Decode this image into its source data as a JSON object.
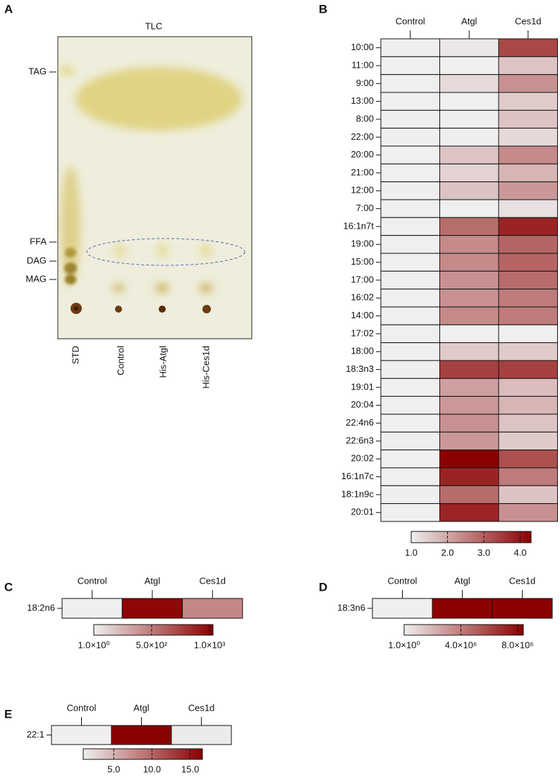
{
  "tlc": {
    "panel": "A",
    "title": "TLC",
    "band_labels": [
      "TAG",
      "FFA",
      "DAG",
      "MAG"
    ],
    "lanes": [
      "STD",
      "Control",
      "His-Atgl",
      "His-Ces1d"
    ]
  },
  "chart_data": [
    {
      "type": "heatmap",
      "panel": "B",
      "categories": [
        "10:00",
        "11:00",
        "9:00",
        "13:00",
        "8:00",
        "22:00",
        "20:00",
        "21:00",
        "12:00",
        "7:00",
        "16:1n7t",
        "19:00",
        "15:00",
        "17:00",
        "16:02",
        "14:00",
        "17:02",
        "18:00",
        "18:3n3",
        "19:01",
        "20:04",
        "22:4n6",
        "22:6n3",
        "20:02",
        "16:1n7c",
        "18:1n9c",
        "20:01"
      ],
      "series": [
        {
          "name": "Control",
          "values": [
            1,
            1,
            1,
            1,
            1,
            1,
            1,
            1,
            1,
            1,
            1,
            1,
            1,
            1,
            1,
            1,
            1,
            1,
            1,
            1,
            1,
            1,
            1,
            1,
            1,
            1,
            1
          ]
        },
        {
          "name": "Atgl",
          "values": [
            1.1,
            1.0,
            1.3,
            1.0,
            1.0,
            1.0,
            1.6,
            1.4,
            1.6,
            1.0,
            2.8,
            2.4,
            2.4,
            2.3,
            2.3,
            2.4,
            1.0,
            1.5,
            3.4,
            2.1,
            2.2,
            2.3,
            2.2,
            4.3,
            3.8,
            2.8,
            3.8
          ]
        },
        {
          "name": "Ces1d",
          "values": [
            3.3,
            1.6,
            2.3,
            1.5,
            1.6,
            1.3,
            2.4,
            1.8,
            2.2,
            1.2,
            3.8,
            2.9,
            2.9,
            2.8,
            2.6,
            2.6,
            1.0,
            1.5,
            3.4,
            1.7,
            1.8,
            1.6,
            1.5,
            3.2,
            2.6,
            1.6,
            2.3
          ]
        }
      ],
      "clim": [
        1,
        4.3
      ],
      "cticks": [
        {
          "value": 1,
          "label": "1.0"
        },
        {
          "value": 2,
          "label": "2.0"
        },
        {
          "value": 3,
          "label": "3.0"
        },
        {
          "value": 4,
          "label": "4.0"
        }
      ],
      "colors": [
        "#efefef",
        "#8b0000"
      ]
    },
    {
      "type": "heatmap",
      "panel": "C",
      "categories": [
        "18:2n6"
      ],
      "series": [
        {
          "name": "Control",
          "values": [
            1
          ]
        },
        {
          "name": "Atgl",
          "values": [
            1000
          ]
        },
        {
          "name": "Ces1d",
          "values": [
            450
          ]
        }
      ],
      "clim": [
        1,
        1030
      ],
      "cticks": [
        {
          "value": 1,
          "label": "1.0×10⁰"
        },
        {
          "value": 500,
          "label": "5.0×10²"
        },
        {
          "value": 1000,
          "label": "1.0×10³"
        }
      ],
      "colors": [
        "#efefef",
        "#8b0000"
      ]
    },
    {
      "type": "heatmap",
      "panel": "D",
      "categories": [
        "18:3n6"
      ],
      "series": [
        {
          "name": "Control",
          "values": [
            1
          ]
        },
        {
          "name": "Atgl",
          "values": [
            8400000
          ]
        },
        {
          "name": "Ces1d",
          "values": [
            8400000
          ]
        }
      ],
      "clim": [
        1,
        8400000
      ],
      "cticks": [
        {
          "value": 1,
          "label": "1.0×10⁰"
        },
        {
          "value": 4000000,
          "label": "4.0×10⁶"
        },
        {
          "value": 8000000,
          "label": "8.0×10⁶"
        }
      ],
      "colors": [
        "#efefef",
        "#8b0000"
      ]
    },
    {
      "type": "heatmap",
      "panel": "E",
      "categories": [
        "22:1"
      ],
      "series": [
        {
          "name": "Control",
          "values": [
            1
          ]
        },
        {
          "name": "Atgl",
          "values": [
            16.6
          ]
        },
        {
          "name": "Ces1d",
          "values": [
            1.3
          ]
        }
      ],
      "clim": [
        1,
        16.6
      ],
      "cticks": [
        {
          "value": 5,
          "label": "5.0"
        },
        {
          "value": 10,
          "label": "10.0"
        },
        {
          "value": 15,
          "label": "15.0"
        }
      ],
      "colors": [
        "#efefef",
        "#8b0000"
      ]
    }
  ]
}
